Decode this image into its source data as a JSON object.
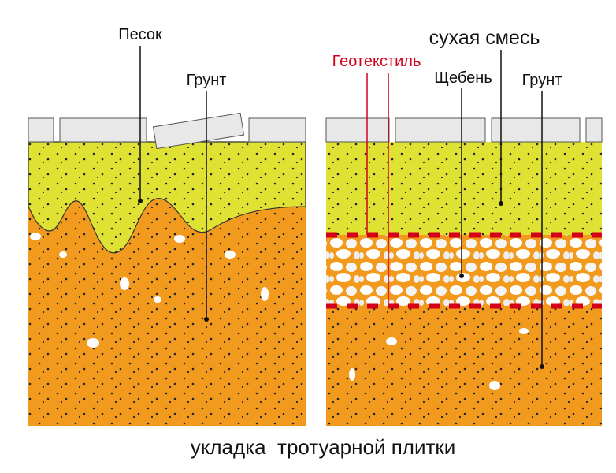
{
  "left_panel": {
    "sand": "Песок",
    "soil": "Грунт"
  },
  "right_panel": {
    "dry_mix": "сухая смесь",
    "geotextile": "Геотекстиль",
    "gravel": "Щебень",
    "soil": "Грунт"
  },
  "caption": "укладка  тротуарной плитки"
}
